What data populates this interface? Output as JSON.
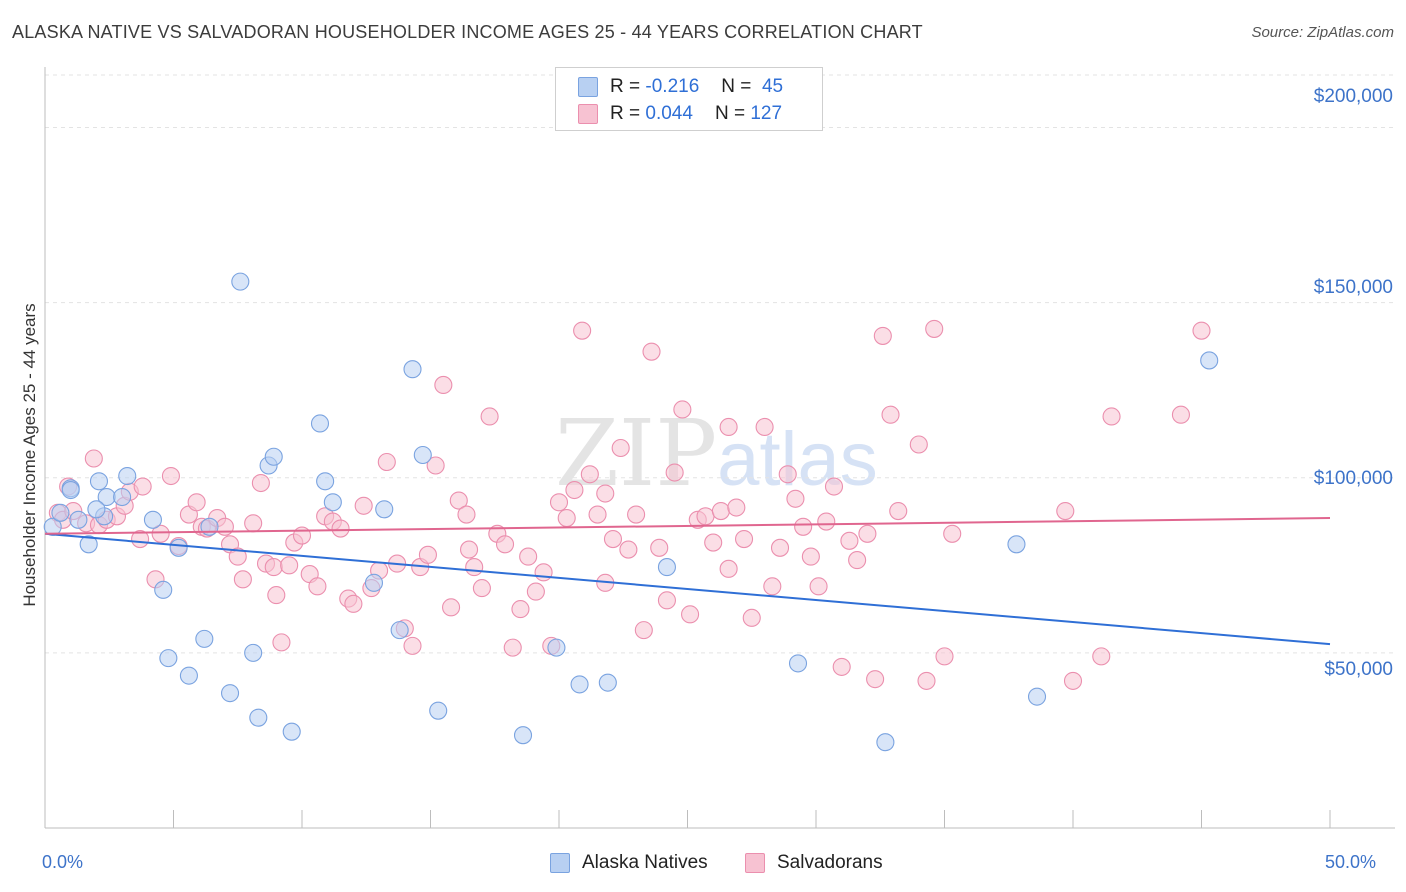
{
  "header": {
    "title": "ALASKA NATIVE VS SALVADORAN HOUSEHOLDER INCOME AGES 25 - 44 YEARS CORRELATION CHART",
    "source": "Source: ZipAtlas.com"
  },
  "watermark": {
    "main": "ZIP",
    "sub": "atlas"
  },
  "legend": {
    "rows": [
      {
        "r_label": "R = ",
        "r_value": "-0.216",
        "n_label": "N = ",
        "n_value": "45"
      },
      {
        "r_label": "R = ",
        "r_value": "0.044",
        "n_label": "N = ",
        "n_value": "127"
      }
    ]
  },
  "colors": {
    "blue_fill": "#b8d0f2",
    "blue_stroke": "#7aa3e0",
    "blue_line": "#2f6fd6",
    "pink_fill": "#f7c2d2",
    "pink_stroke": "#eb8fae",
    "pink_line": "#e0668f",
    "axis_text": "#3d73c9",
    "grid": "#e3e3e3"
  },
  "chart_data": {
    "type": "scatter",
    "title": "ALASKA NATIVE VS SALVADORAN HOUSEHOLDER INCOME AGES 25 - 44 YEARS CORRELATION CHART",
    "xlabel": "",
    "ylabel": "Householder Income Ages 25 - 44 years",
    "xlim": [
      0,
      50
    ],
    "ylim": [
      0,
      215000
    ],
    "x_tick_labels": [
      "0.0%",
      "50.0%"
    ],
    "y_ticks": [
      50000,
      100000,
      150000,
      200000
    ],
    "y_tick_labels": [
      "$50,000",
      "$100,000",
      "$150,000",
      "$200,000"
    ],
    "grid": true,
    "legend_position": "bottom",
    "series": [
      {
        "name": "Alaska Natives",
        "r": -0.216,
        "n": 45,
        "trend": {
          "x": [
            0,
            50
          ],
          "y": [
            84000,
            52500
          ]
        },
        "points": [
          [
            0.3,
            86000
          ],
          [
            0.6,
            90000
          ],
          [
            1.0,
            97000
          ],
          [
            1.3,
            88000
          ],
          [
            1.7,
            81000
          ],
          [
            2.1,
            99000
          ],
          [
            2.3,
            89000
          ],
          [
            2.4,
            94500
          ],
          [
            3.2,
            100500
          ],
          [
            4.2,
            88000
          ],
          [
            4.6,
            68000
          ],
          [
            4.8,
            48500
          ],
          [
            5.2,
            80000
          ],
          [
            5.6,
            43500
          ],
          [
            6.2,
            54000
          ],
          [
            6.4,
            86000
          ],
          [
            7.2,
            38500
          ],
          [
            7.6,
            156000
          ],
          [
            8.1,
            50000
          ],
          [
            8.3,
            31500
          ],
          [
            8.7,
            103500
          ],
          [
            8.9,
            106000
          ],
          [
            9.6,
            27500
          ],
          [
            10.7,
            115500
          ],
          [
            10.9,
            99000
          ],
          [
            11.2,
            93000
          ],
          [
            12.8,
            70000
          ],
          [
            13.2,
            91000
          ],
          [
            13.8,
            56500
          ],
          [
            14.3,
            131000
          ],
          [
            14.7,
            106500
          ],
          [
            15.3,
            33500
          ],
          [
            18.6,
            26500
          ],
          [
            19.9,
            51500
          ],
          [
            20.8,
            41000
          ],
          [
            21.9,
            41500
          ],
          [
            24.2,
            74500
          ],
          [
            29.3,
            47000
          ],
          [
            32.7,
            24500
          ],
          [
            37.8,
            81000
          ],
          [
            38.6,
            37500
          ],
          [
            45.3,
            133500
          ],
          [
            2.0,
            91000
          ],
          [
            1.0,
            96500
          ],
          [
            3.0,
            94500
          ]
        ]
      },
      {
        "name": "Salvadorans",
        "r": 0.044,
        "n": 127,
        "trend": {
          "x": [
            0,
            50
          ],
          "y": [
            84000,
            88500
          ]
        },
        "points": [
          [
            0.5,
            90000
          ],
          [
            0.7,
            88000
          ],
          [
            0.9,
            97500
          ],
          [
            1.1,
            90500
          ],
          [
            1.6,
            87000
          ],
          [
            1.9,
            105500
          ],
          [
            2.1,
            86500
          ],
          [
            2.4,
            88000
          ],
          [
            2.8,
            89000
          ],
          [
            3.1,
            92000
          ],
          [
            3.3,
            96000
          ],
          [
            3.7,
            82500
          ],
          [
            3.8,
            97500
          ],
          [
            4.3,
            71000
          ],
          [
            4.5,
            84000
          ],
          [
            4.9,
            100500
          ],
          [
            5.2,
            80500
          ],
          [
            5.6,
            89500
          ],
          [
            5.9,
            93000
          ],
          [
            6.1,
            86000
          ],
          [
            6.3,
            85500
          ],
          [
            6.7,
            88500
          ],
          [
            7.0,
            86000
          ],
          [
            7.2,
            81000
          ],
          [
            7.5,
            77500
          ],
          [
            7.7,
            71000
          ],
          [
            8.1,
            87000
          ],
          [
            8.4,
            98500
          ],
          [
            8.6,
            75500
          ],
          [
            8.9,
            74500
          ],
          [
            9.2,
            53000
          ],
          [
            9.5,
            75000
          ],
          [
            9.7,
            81500
          ],
          [
            10.0,
            83500
          ],
          [
            10.3,
            72500
          ],
          [
            10.6,
            69000
          ],
          [
            10.9,
            89000
          ],
          [
            11.2,
            87500
          ],
          [
            11.5,
            85500
          ],
          [
            11.8,
            65500
          ],
          [
            12.0,
            64000
          ],
          [
            12.4,
            92000
          ],
          [
            12.7,
            68500
          ],
          [
            13.0,
            73500
          ],
          [
            13.3,
            104500
          ],
          [
            13.7,
            75500
          ],
          [
            14.0,
            57000
          ],
          [
            14.3,
            52000
          ],
          [
            14.6,
            74500
          ],
          [
            14.9,
            78000
          ],
          [
            15.2,
            103500
          ],
          [
            15.5,
            126500
          ],
          [
            15.8,
            63000
          ],
          [
            16.1,
            93500
          ],
          [
            16.4,
            89500
          ],
          [
            16.7,
            74500
          ],
          [
            17.0,
            68500
          ],
          [
            17.3,
            117500
          ],
          [
            17.6,
            84000
          ],
          [
            17.9,
            81000
          ],
          [
            18.2,
            51500
          ],
          [
            18.5,
            62500
          ],
          [
            18.8,
            77500
          ],
          [
            19.1,
            67500
          ],
          [
            19.4,
            73000
          ],
          [
            19.7,
            52000
          ],
          [
            20.0,
            93000
          ],
          [
            20.3,
            88500
          ],
          [
            20.6,
            96500
          ],
          [
            20.9,
            142000
          ],
          [
            21.2,
            101000
          ],
          [
            21.5,
            89500
          ],
          [
            21.8,
            95500
          ],
          [
            22.1,
            82500
          ],
          [
            22.4,
            108500
          ],
          [
            22.7,
            79500
          ],
          [
            23.0,
            89500
          ],
          [
            23.3,
            56500
          ],
          [
            23.6,
            136000
          ],
          [
            23.9,
            80000
          ],
          [
            24.2,
            65000
          ],
          [
            24.5,
            101500
          ],
          [
            24.8,
            119500
          ],
          [
            25.1,
            61000
          ],
          [
            25.4,
            88000
          ],
          [
            25.7,
            89000
          ],
          [
            26.0,
            81500
          ],
          [
            26.3,
            90500
          ],
          [
            26.6,
            114500
          ],
          [
            26.9,
            91500
          ],
          [
            27.2,
            82500
          ],
          [
            28.0,
            114500
          ],
          [
            28.3,
            69000
          ],
          [
            28.6,
            80000
          ],
          [
            28.9,
            101000
          ],
          [
            29.2,
            94000
          ],
          [
            29.5,
            86000
          ],
          [
            29.8,
            77500
          ],
          [
            30.1,
            69000
          ],
          [
            30.4,
            87500
          ],
          [
            30.7,
            97500
          ],
          [
            31.0,
            46000
          ],
          [
            31.3,
            82000
          ],
          [
            31.6,
            76500
          ],
          [
            32.0,
            84000
          ],
          [
            32.3,
            42500
          ],
          [
            32.6,
            140500
          ],
          [
            32.9,
            118000
          ],
          [
            33.2,
            90500
          ],
          [
            34.0,
            109500
          ],
          [
            34.3,
            42000
          ],
          [
            34.6,
            142500
          ],
          [
            35.0,
            49000
          ],
          [
            35.3,
            84000
          ],
          [
            39.7,
            90500
          ],
          [
            40.0,
            42000
          ],
          [
            41.1,
            49000
          ],
          [
            41.5,
            117500
          ],
          [
            44.2,
            118000
          ],
          [
            45.0,
            142000
          ],
          [
            26.6,
            74000
          ],
          [
            27.5,
            60000
          ],
          [
            21.8,
            70000
          ],
          [
            16.5,
            79500
          ],
          [
            9.0,
            66500
          ]
        ]
      }
    ]
  },
  "bottom_legend": {
    "items": [
      {
        "label": "Alaska Natives"
      },
      {
        "label": "Salvadorans"
      }
    ]
  }
}
